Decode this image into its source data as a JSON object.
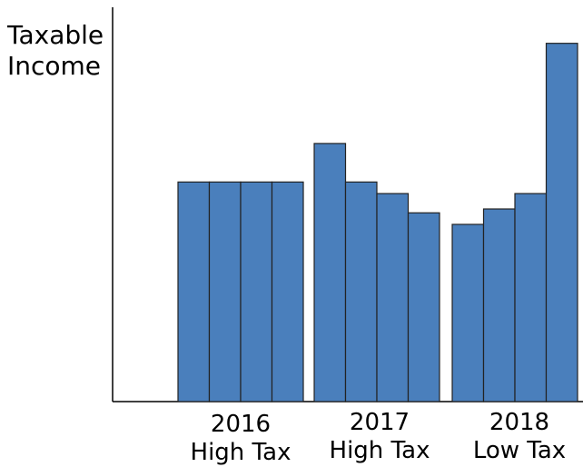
{
  "chart_data": {
    "type": "bar",
    "ylabel_lines": [
      "Taxable",
      "Income"
    ],
    "groups": [
      {
        "label_lines": [
          "2016",
          "High Tax"
        ],
        "values": [
          57,
          57,
          57,
          57
        ]
      },
      {
        "label_lines": [
          "2017",
          "High Tax"
        ],
        "values": [
          67,
          57,
          54,
          49
        ]
      },
      {
        "label_lines": [
          "2018",
          "Low Tax"
        ],
        "values": [
          46,
          50,
          54,
          93
        ]
      }
    ],
    "ylim": [
      0,
      100
    ],
    "grid": false,
    "bar_color": "#4a7fbc",
    "bar_edge_color": "#222222"
  }
}
